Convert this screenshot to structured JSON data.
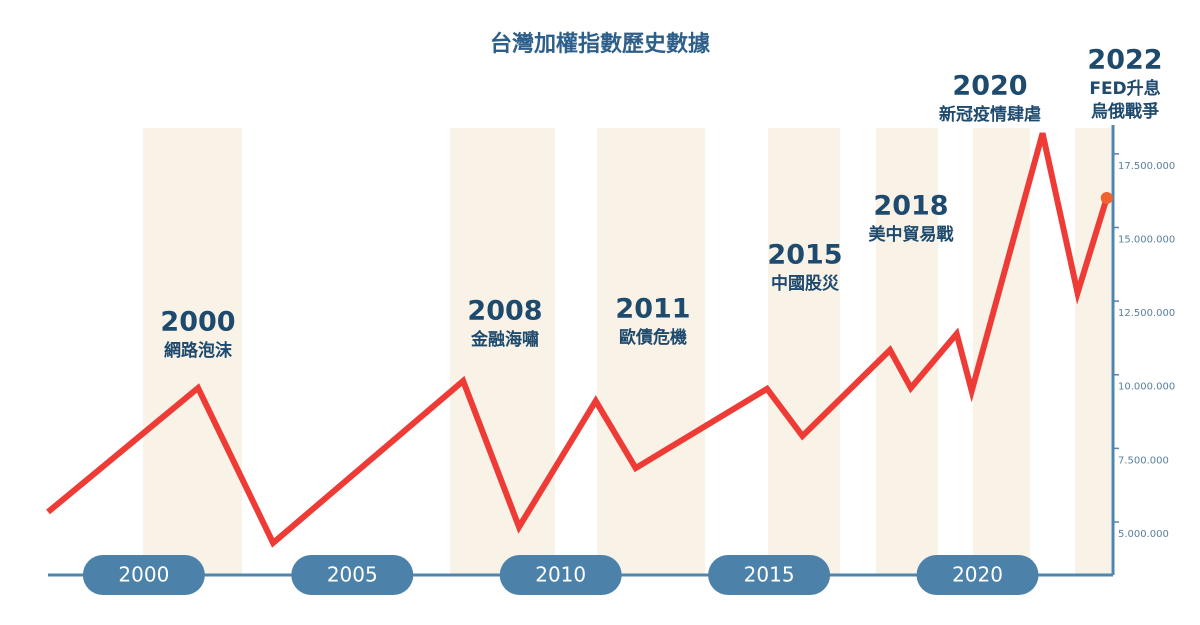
{
  "chart_data": {
    "type": "line",
    "title": "台灣加權指數歷史數據",
    "x": [
      1997.7,
      2001.3,
      2003.1,
      2007.66,
      2009.0,
      2010.84,
      2011.8,
      2014.95,
      2015.8,
      2017.9,
      2018.4,
      2019.5,
      2019.86,
      2021.56,
      2022.4,
      2023.1
    ],
    "series": [
      {
        "name": "台灣加權指數",
        "color": "#ee3b36",
        "values": [
          5340000,
          9550000,
          4290000,
          9790000,
          4830000,
          9110000,
          6830000,
          9520000,
          7920000,
          10840000,
          9550000,
          11390000,
          9450000,
          18200000,
          12780000,
          16000000
        ]
      }
    ],
    "xlim": [
      1997.7,
      2023.25
    ],
    "xticks": [
      2000,
      2005,
      2010,
      2015,
      2020
    ],
    "ylim": [
      3200000,
      18480000
    ],
    "yticks": [
      {
        "value": 5000000,
        "label": "5.000.000"
      },
      {
        "value": 7500000,
        "label": "7.500.000"
      },
      {
        "value": 10000000,
        "label": "10.000.000"
      },
      {
        "value": 12500000,
        "label": "12.500.000"
      },
      {
        "value": 15000000,
        "label": "15.000.000"
      },
      {
        "value": 17500000,
        "label": "17.500.000"
      }
    ],
    "annotations": [
      {
        "year": "2000",
        "lines": [
          "網路泡沫"
        ]
      },
      {
        "year": "2008",
        "lines": [
          "金融海嘯"
        ]
      },
      {
        "year": "2011",
        "lines": [
          "歐債危機"
        ]
      },
      {
        "year": "2015",
        "lines": [
          "中國股災"
        ]
      },
      {
        "year": "2018",
        "lines": [
          "美中貿易戰"
        ]
      },
      {
        "year": "2020",
        "lines": [
          "新冠疫情肆虐"
        ]
      },
      {
        "year": "2022",
        "lines": [
          "FED升息",
          "烏俄戰爭"
        ]
      }
    ]
  }
}
